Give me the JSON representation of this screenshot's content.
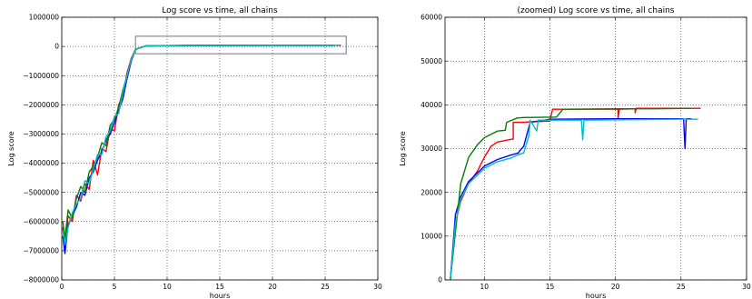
{
  "chart_data": [
    {
      "type": "line",
      "title": "Log score vs time, all chains",
      "xlabel": "hours",
      "ylabel": "Log score",
      "xlim": [
        0,
        30
      ],
      "ylim": [
        -8000000,
        1000000
      ],
      "xticks": [
        0,
        5,
        10,
        15,
        20,
        25,
        30
      ],
      "yticks": [
        -8000000,
        -7000000,
        -6000000,
        -5000000,
        -4000000,
        -3000000,
        -2000000,
        -1000000,
        0,
        1000000
      ],
      "xtick_labels": [
        "0",
        "5",
        "10",
        "15",
        "20",
        "25",
        "30"
      ],
      "ytick_labels": [
        "−8000000",
        "−7000000",
        "−6000000",
        "−5000000",
        "−4000000",
        "−3000000",
        "−2000000",
        "−1000000",
        "0",
        "1000000"
      ],
      "grid": true,
      "inset_box": {
        "x": [
          7,
          27
        ],
        "y": [
          -250000,
          350000
        ]
      },
      "series": [
        {
          "color": "#ff0000",
          "points": [
            [
              0.1,
              -6200000
            ],
            [
              0.3,
              -6900000
            ],
            [
              0.6,
              -5800000
            ],
            [
              1.0,
              -6000000
            ],
            [
              1.4,
              -5100000
            ],
            [
              1.8,
              -5300000
            ],
            [
              2.2,
              -4700000
            ],
            [
              2.6,
              -4900000
            ],
            [
              3.0,
              -3900000
            ],
            [
              3.4,
              -4400000
            ],
            [
              3.8,
              -3500000
            ],
            [
              4.2,
              -3600000
            ],
            [
              4.6,
              -2800000
            ],
            [
              5.0,
              -2900000
            ],
            [
              5.4,
              -2000000
            ],
            [
              5.8,
              -1700000
            ],
            [
              6.2,
              -900000
            ],
            [
              6.6,
              -400000
            ],
            [
              7.0,
              -100000
            ],
            [
              8.0,
              20000
            ],
            [
              12,
              34000
            ],
            [
              20,
              39000
            ],
            [
              26.5,
              39000
            ]
          ]
        },
        {
          "color": "#0000ff",
          "points": [
            [
              0.1,
              -6500000
            ],
            [
              0.3,
              -7100000
            ],
            [
              0.6,
              -6100000
            ],
            [
              1.0,
              -5800000
            ],
            [
              1.4,
              -5500000
            ],
            [
              1.8,
              -5000000
            ],
            [
              2.2,
              -5100000
            ],
            [
              2.6,
              -4500000
            ],
            [
              3.0,
              -4300000
            ],
            [
              3.4,
              -3900000
            ],
            [
              3.8,
              -3600000
            ],
            [
              4.2,
              -3200000
            ],
            [
              4.6,
              -3000000
            ],
            [
              5.0,
              -2600000
            ],
            [
              5.4,
              -2200000
            ],
            [
              5.8,
              -1800000
            ],
            [
              6.2,
              -1100000
            ],
            [
              6.6,
              -500000
            ],
            [
              7.0,
              -100000
            ],
            [
              8.0,
              20000
            ],
            [
              12,
              33000
            ],
            [
              20,
              37000
            ],
            [
              25.8,
              37000
            ]
          ]
        },
        {
          "color": "#008000",
          "points": [
            [
              0.1,
              -6000000
            ],
            [
              0.3,
              -6600000
            ],
            [
              0.6,
              -5600000
            ],
            [
              1.0,
              -5900000
            ],
            [
              1.4,
              -5200000
            ],
            [
              1.8,
              -4800000
            ],
            [
              2.2,
              -5000000
            ],
            [
              2.6,
              -4300000
            ],
            [
              3.0,
              -4100000
            ],
            [
              3.4,
              -3800000
            ],
            [
              3.8,
              -3300000
            ],
            [
              4.2,
              -3400000
            ],
            [
              4.6,
              -2700000
            ],
            [
              5.0,
              -2500000
            ],
            [
              5.4,
              -2100000
            ],
            [
              5.8,
              -1500000
            ],
            [
              6.2,
              -1000000
            ],
            [
              6.6,
              -450000
            ],
            [
              7.0,
              -100000
            ],
            [
              8.0,
              25000
            ],
            [
              12,
              36000
            ],
            [
              20,
              37000
            ],
            [
              25.8,
              37000
            ]
          ]
        },
        {
          "color": "#00bfbf",
          "points": [
            [
              0.1,
              -6300000
            ],
            [
              0.3,
              -6800000
            ],
            [
              0.6,
              -6200000
            ],
            [
              1.0,
              -5700000
            ],
            [
              1.4,
              -5400000
            ],
            [
              1.8,
              -5200000
            ],
            [
              2.2,
              -4600000
            ],
            [
              2.6,
              -4700000
            ],
            [
              3.0,
              -4200000
            ],
            [
              3.4,
              -3700000
            ],
            [
              3.8,
              -3700000
            ],
            [
              4.2,
              -3100000
            ],
            [
              4.6,
              -2900000
            ],
            [
              5.0,
              -2400000
            ],
            [
              5.4,
              -2300000
            ],
            [
              5.8,
              -1600000
            ],
            [
              6.2,
              -1000000
            ],
            [
              6.6,
              -450000
            ],
            [
              7.0,
              -100000
            ],
            [
              8.0,
              22000
            ],
            [
              12,
              33000
            ],
            [
              20,
              37000
            ],
            [
              26.3,
              37000
            ]
          ]
        }
      ]
    },
    {
      "type": "line",
      "title": "(zoomed) Log score vs time, all chains",
      "xlabel": "hours",
      "ylabel": "Log score",
      "xlim": [
        7,
        30
      ],
      "ylim": [
        0,
        60000
      ],
      "xticks": [
        10,
        15,
        20,
        25,
        30
      ],
      "yticks": [
        0,
        10000,
        20000,
        30000,
        40000,
        50000,
        60000
      ],
      "xtick_labels": [
        "10",
        "15",
        "20",
        "25",
        "30"
      ],
      "ytick_labels": [
        "0",
        "10000",
        "20000",
        "30000",
        "40000",
        "50000",
        "60000"
      ],
      "grid": true,
      "series": [
        {
          "color": "#ff0000",
          "points": [
            [
              7.4,
              0
            ],
            [
              7.8,
              13000
            ],
            [
              8.2,
              18000
            ],
            [
              8.8,
              22000
            ],
            [
              9.5,
              25000
            ],
            [
              10.0,
              28000
            ],
            [
              10.5,
              30500
            ],
            [
              11.0,
              31500
            ],
            [
              11.8,
              32000
            ],
            [
              12.2,
              32200
            ],
            [
              12.2,
              36000
            ],
            [
              13.0,
              36000
            ],
            [
              13.5,
              36100
            ],
            [
              15.0,
              36300
            ],
            [
              15.2,
              39000
            ],
            [
              20.2,
              39000
            ],
            [
              20.2,
              37000
            ],
            [
              20.3,
              39000
            ],
            [
              21.5,
              39100
            ],
            [
              21.5,
              38200
            ],
            [
              21.6,
              39200
            ],
            [
              26.5,
              39200
            ]
          ]
        },
        {
          "color": "#0000ff",
          "points": [
            [
              7.4,
              0
            ],
            [
              7.8,
              15000
            ],
            [
              8.2,
              19000
            ],
            [
              8.8,
              22500
            ],
            [
              9.5,
              24500
            ],
            [
              10.0,
              26000
            ],
            [
              11.0,
              27500
            ],
            [
              12.0,
              28500
            ],
            [
              12.6,
              29000
            ],
            [
              12.7,
              29500
            ],
            [
              13.0,
              30500
            ],
            [
              13.5,
              36000
            ],
            [
              15.0,
              36700
            ],
            [
              20.0,
              36800
            ],
            [
              25.2,
              36800
            ],
            [
              25.3,
              30000
            ],
            [
              25.4,
              36800
            ],
            [
              25.8,
              36800
            ]
          ]
        },
        {
          "color": "#008000",
          "points": [
            [
              7.4,
              0
            ],
            [
              7.8,
              11000
            ],
            [
              8.2,
              22000
            ],
            [
              8.8,
              28000
            ],
            [
              9.5,
              31000
            ],
            [
              10.0,
              32500
            ],
            [
              11.0,
              34000
            ],
            [
              11.6,
              34200
            ],
            [
              11.7,
              36000
            ],
            [
              12.5,
              37000
            ],
            [
              13.0,
              37100
            ],
            [
              15.5,
              37200
            ],
            [
              16.0,
              39000
            ],
            [
              20.0,
              39100
            ],
            [
              23.0,
              39100
            ],
            [
              25.8,
              39200
            ]
          ]
        },
        {
          "color": "#00bfbf",
          "points": [
            [
              7.4,
              0
            ],
            [
              7.8,
              13000
            ],
            [
              8.2,
              18500
            ],
            [
              8.8,
              22000
            ],
            [
              9.5,
              24000
            ],
            [
              10.0,
              25500
            ],
            [
              11.0,
              27000
            ],
            [
              12.0,
              27800
            ],
            [
              12.5,
              28500
            ],
            [
              13.0,
              29000
            ],
            [
              13.4,
              33000
            ],
            [
              13.5,
              36500
            ],
            [
              14.0,
              34000
            ],
            [
              14.1,
              36500
            ],
            [
              17.4,
              36500
            ],
            [
              17.5,
              32000
            ],
            [
              17.6,
              36500
            ],
            [
              25.0,
              36700
            ],
            [
              26.3,
              36700
            ]
          ]
        }
      ]
    }
  ]
}
